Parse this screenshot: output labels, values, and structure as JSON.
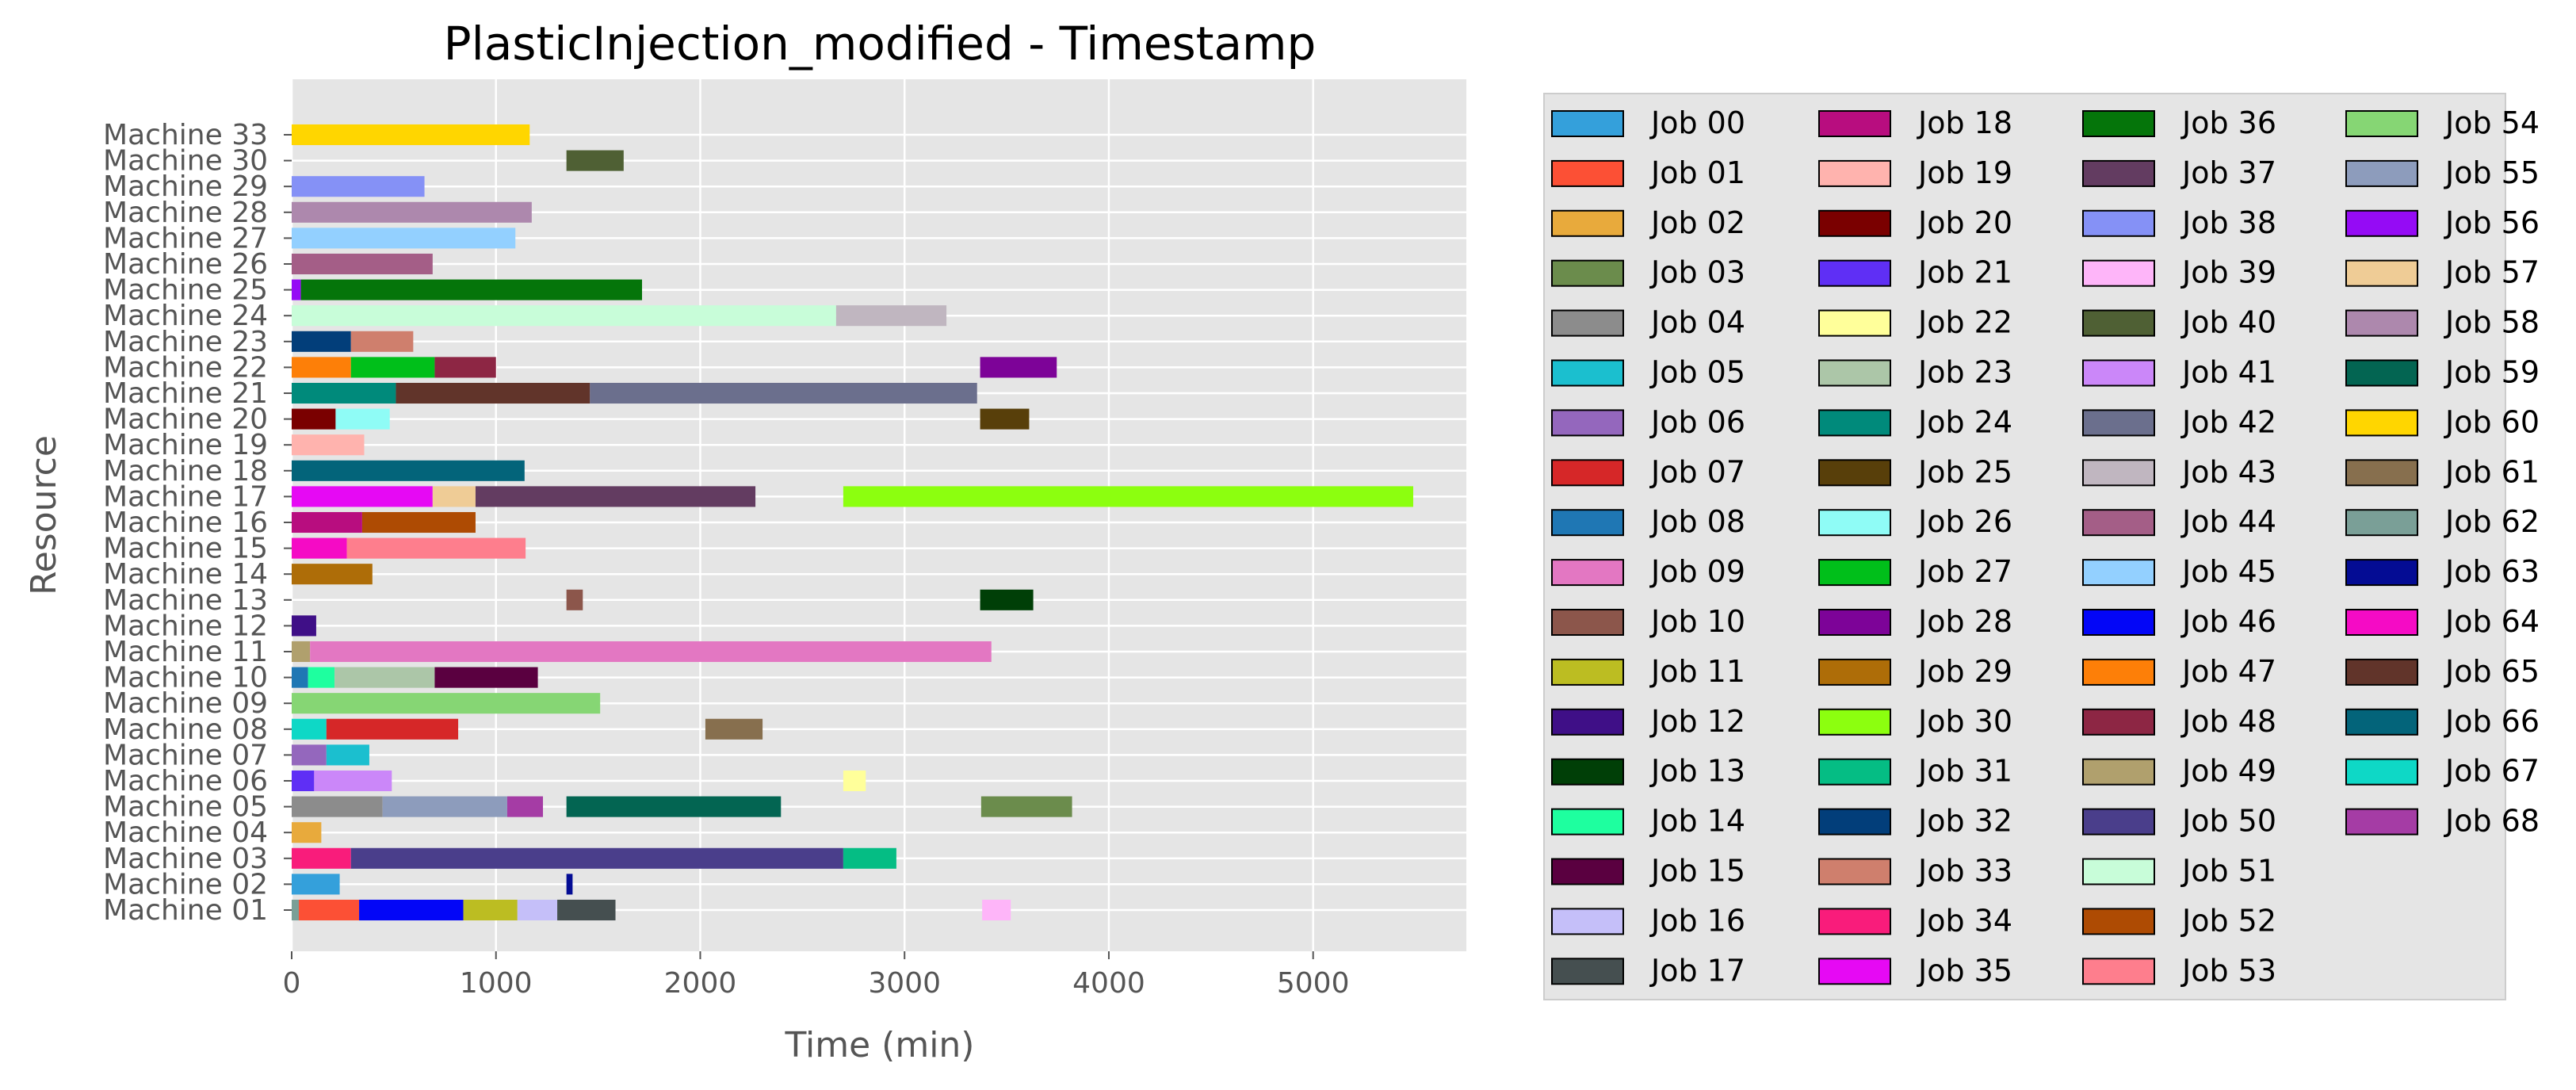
{
  "chart_data": {
    "type": "gantt",
    "title": "PlasticInjection_modified - Timestamp",
    "xlabel": "Time (min)",
    "ylabel": "Resource",
    "xlim": [
      0,
      5750
    ],
    "xticks": [
      0,
      1000,
      2000,
      3000,
      4000,
      5000
    ],
    "grid": true,
    "legend_position": "outside-right",
    "legend_columns": 4,
    "machines": [
      "Machine 01",
      "Machine 02",
      "Machine 03",
      "Machine 04",
      "Machine 05",
      "Machine 06",
      "Machine 07",
      "Machine 08",
      "Machine 09",
      "Machine 10",
      "Machine 11",
      "Machine 12",
      "Machine 13",
      "Machine 14",
      "Machine 15",
      "Machine 16",
      "Machine 17",
      "Machine 18",
      "Machine 19",
      "Machine 20",
      "Machine 21",
      "Machine 22",
      "Machine 23",
      "Machine 24",
      "Machine 25",
      "Machine 26",
      "Machine 27",
      "Machine 28",
      "Machine 29",
      "Machine 30",
      "Machine 33"
    ],
    "jobs": [
      {
        "name": "Job 00",
        "color": "#34a0db"
      },
      {
        "name": "Job 01",
        "color": "#fc5035"
      },
      {
        "name": "Job 02",
        "color": "#e8aa3c"
      },
      {
        "name": "Job 03",
        "color": "#6b8c4c"
      },
      {
        "name": "Job 04",
        "color": "#8c8c8c"
      },
      {
        "name": "Job 05",
        "color": "#1bbfcf"
      },
      {
        "name": "Job 06",
        "color": "#9467bd"
      },
      {
        "name": "Job 07",
        "color": "#d62728"
      },
      {
        "name": "Job 08",
        "color": "#1f77b4"
      },
      {
        "name": "Job 09",
        "color": "#e377c2"
      },
      {
        "name": "Job 10",
        "color": "#8c564b"
      },
      {
        "name": "Job 11",
        "color": "#bcbd22"
      },
      {
        "name": "Job 12",
        "color": "#3f0f87"
      },
      {
        "name": "Job 13",
        "color": "#003f07"
      },
      {
        "name": "Job 14",
        "color": "#1eff9f"
      },
      {
        "name": "Job 15",
        "color": "#5a0040"
      },
      {
        "name": "Job 16",
        "color": "#c5bff9"
      },
      {
        "name": "Job 17",
        "color": "#454f50"
      },
      {
        "name": "Job 18",
        "color": "#b80d7f"
      },
      {
        "name": "Job 19",
        "color": "#ffb3ae"
      },
      {
        "name": "Job 20",
        "color": "#7a0000"
      },
      {
        "name": "Job 21",
        "color": "#5f2ff5"
      },
      {
        "name": "Job 22",
        "color": "#ffff9a"
      },
      {
        "name": "Job 23",
        "color": "#acc6a8"
      },
      {
        "name": "Job 24",
        "color": "#008a7b"
      },
      {
        "name": "Job 25",
        "color": "#583f0a"
      },
      {
        "name": "Job 26",
        "color": "#8ffcf6"
      },
      {
        "name": "Job 27",
        "color": "#00bf1a"
      },
      {
        "name": "Job 28",
        "color": "#7d0398"
      },
      {
        "name": "Job 29",
        "color": "#ae6d08"
      },
      {
        "name": "Job 30",
        "color": "#8cff0f"
      },
      {
        "name": "Job 31",
        "color": "#05bd84"
      },
      {
        "name": "Job 32",
        "color": "#023e7a"
      },
      {
        "name": "Job 33",
        "color": "#cf7f6d"
      },
      {
        "name": "Job 34",
        "color": "#f91c7b"
      },
      {
        "name": "Job 35",
        "color": "#e609f4"
      },
      {
        "name": "Job 36",
        "color": "#05750a"
      },
      {
        "name": "Job 37",
        "color": "#633c61"
      },
      {
        "name": "Job 38",
        "color": "#8591f6"
      },
      {
        "name": "Job 39",
        "color": "#feb5f9"
      },
      {
        "name": "Job 40",
        "color": "#4f6034"
      },
      {
        "name": "Job 41",
        "color": "#cb87f9"
      },
      {
        "name": "Job 42",
        "color": "#6b6f8d"
      },
      {
        "name": "Job 43",
        "color": "#c0b6c0"
      },
      {
        "name": "Job 44",
        "color": "#a45e87"
      },
      {
        "name": "Job 45",
        "color": "#93d0ff"
      },
      {
        "name": "Job 46",
        "color": "#0306f7"
      },
      {
        "name": "Job 47",
        "color": "#fd7f08"
      },
      {
        "name": "Job 48",
        "color": "#8d2644"
      },
      {
        "name": "Job 49",
        "color": "#b0a06d"
      },
      {
        "name": "Job 50",
        "color": "#4a3e8b"
      },
      {
        "name": "Job 51",
        "color": "#c8fdd9"
      },
      {
        "name": "Job 52",
        "color": "#ae4b03"
      },
      {
        "name": "Job 53",
        "color": "#fe7e8d"
      },
      {
        "name": "Job 54",
        "color": "#86d674"
      },
      {
        "name": "Job 55",
        "color": "#8d9cbc"
      },
      {
        "name": "Job 56",
        "color": "#950bf5"
      },
      {
        "name": "Job 57",
        "color": "#efcc96"
      },
      {
        "name": "Job 58",
        "color": "#ad88ad"
      },
      {
        "name": "Job 59",
        "color": "#036552"
      },
      {
        "name": "Job 60",
        "color": "#ffd600"
      },
      {
        "name": "Job 61",
        "color": "#876f4e"
      },
      {
        "name": "Job 62",
        "color": "#7a9f97"
      },
      {
        "name": "Job 63",
        "color": "#040c94"
      },
      {
        "name": "Job 64",
        "color": "#f50bc5"
      },
      {
        "name": "Job 65",
        "color": "#61342a"
      },
      {
        "name": "Job 66",
        "color": "#03647a"
      },
      {
        "name": "Job 67",
        "color": "#0ed8c6"
      },
      {
        "name": "Job 68",
        "color": "#a53ca5"
      }
    ],
    "tasks": [
      {
        "machine": "Machine 33",
        "job": "Job 60",
        "start": 0,
        "end": 1165
      },
      {
        "machine": "Machine 30",
        "job": "Job 40",
        "start": 1345,
        "end": 1625
      },
      {
        "machine": "Machine 29",
        "job": "Job 38",
        "start": 0,
        "end": 650
      },
      {
        "machine": "Machine 28",
        "job": "Job 58",
        "start": 0,
        "end": 1175
      },
      {
        "machine": "Machine 27",
        "job": "Job 45",
        "start": 0,
        "end": 1095
      },
      {
        "machine": "Machine 26",
        "job": "Job 44",
        "start": 0,
        "end": 690
      },
      {
        "machine": "Machine 25",
        "job": "Job 56",
        "start": 0,
        "end": 45
      },
      {
        "machine": "Machine 25",
        "job": "Job 36",
        "start": 45,
        "end": 1715
      },
      {
        "machine": "Machine 24",
        "job": "Job 51",
        "start": 0,
        "end": 2665
      },
      {
        "machine": "Machine 24",
        "job": "Job 43",
        "start": 2665,
        "end": 3205
      },
      {
        "machine": "Machine 23",
        "job": "Job 32",
        "start": 0,
        "end": 290
      },
      {
        "machine": "Machine 23",
        "job": "Job 33",
        "start": 290,
        "end": 595
      },
      {
        "machine": "Machine 22",
        "job": "Job 47",
        "start": 0,
        "end": 290
      },
      {
        "machine": "Machine 22",
        "job": "Job 27",
        "start": 290,
        "end": 700
      },
      {
        "machine": "Machine 22",
        "job": "Job 48",
        "start": 700,
        "end": 1000
      },
      {
        "machine": "Machine 22",
        "job": "Job 28",
        "start": 3370,
        "end": 3745
      },
      {
        "machine": "Machine 21",
        "job": "Job 24",
        "start": 0,
        "end": 510
      },
      {
        "machine": "Machine 21",
        "job": "Job 65",
        "start": 510,
        "end": 1460
      },
      {
        "machine": "Machine 21",
        "job": "Job 42",
        "start": 1460,
        "end": 3355
      },
      {
        "machine": "Machine 20",
        "job": "Job 20",
        "start": 0,
        "end": 215
      },
      {
        "machine": "Machine 20",
        "job": "Job 26",
        "start": 215,
        "end": 480
      },
      {
        "machine": "Machine 20",
        "job": "Job 25",
        "start": 3370,
        "end": 3610
      },
      {
        "machine": "Machine 19",
        "job": "Job 19",
        "start": 0,
        "end": 355
      },
      {
        "machine": "Machine 18",
        "job": "Job 66",
        "start": 0,
        "end": 1140
      },
      {
        "machine": "Machine 17",
        "job": "Job 35",
        "start": 0,
        "end": 690
      },
      {
        "machine": "Machine 17",
        "job": "Job 57",
        "start": 690,
        "end": 900
      },
      {
        "machine": "Machine 17",
        "job": "Job 37",
        "start": 900,
        "end": 2270
      },
      {
        "machine": "Machine 17",
        "job": "Job 30",
        "start": 2700,
        "end": 5490
      },
      {
        "machine": "Machine 16",
        "job": "Job 18",
        "start": 0,
        "end": 345
      },
      {
        "machine": "Machine 16",
        "job": "Job 52",
        "start": 345,
        "end": 900
      },
      {
        "machine": "Machine 15",
        "job": "Job 64",
        "start": 0,
        "end": 270
      },
      {
        "machine": "Machine 15",
        "job": "Job 53",
        "start": 270,
        "end": 1145
      },
      {
        "machine": "Machine 14",
        "job": "Job 29",
        "start": 0,
        "end": 395
      },
      {
        "machine": "Machine 13",
        "job": "Job 10",
        "start": 1345,
        "end": 1425
      },
      {
        "machine": "Machine 13",
        "job": "Job 13",
        "start": 3370,
        "end": 3630
      },
      {
        "machine": "Machine 12",
        "job": "Job 12",
        "start": 0,
        "end": 120
      },
      {
        "machine": "Machine 11",
        "job": "Job 49",
        "start": 0,
        "end": 90
      },
      {
        "machine": "Machine 11",
        "job": "Job 09",
        "start": 90,
        "end": 3425
      },
      {
        "machine": "Machine 10",
        "job": "Job 08",
        "start": 0,
        "end": 80
      },
      {
        "machine": "Machine 10",
        "job": "Job 14",
        "start": 80,
        "end": 210
      },
      {
        "machine": "Machine 10",
        "job": "Job 23",
        "start": 210,
        "end": 700
      },
      {
        "machine": "Machine 10",
        "job": "Job 15",
        "start": 700,
        "end": 1205
      },
      {
        "machine": "Machine 09",
        "job": "Job 54",
        "start": 0,
        "end": 1510
      },
      {
        "machine": "Machine 08",
        "job": "Job 67",
        "start": 0,
        "end": 170
      },
      {
        "machine": "Machine 08",
        "job": "Job 07",
        "start": 170,
        "end": 815
      },
      {
        "machine": "Machine 08",
        "job": "Job 61",
        "start": 2025,
        "end": 2305
      },
      {
        "machine": "Machine 07",
        "job": "Job 06",
        "start": 0,
        "end": 170
      },
      {
        "machine": "Machine 07",
        "job": "Job 05",
        "start": 170,
        "end": 380
      },
      {
        "machine": "Machine 06",
        "job": "Job 21",
        "start": 0,
        "end": 110
      },
      {
        "machine": "Machine 06",
        "job": "Job 41",
        "start": 110,
        "end": 490
      },
      {
        "machine": "Machine 06",
        "job": "Job 22",
        "start": 2700,
        "end": 2810
      },
      {
        "machine": "Machine 05",
        "job": "Job 04",
        "start": 0,
        "end": 445
      },
      {
        "machine": "Machine 05",
        "job": "Job 55",
        "start": 445,
        "end": 1055
      },
      {
        "machine": "Machine 05",
        "job": "Job 68",
        "start": 1055,
        "end": 1230
      },
      {
        "machine": "Machine 05",
        "job": "Job 59",
        "start": 1345,
        "end": 2395
      },
      {
        "machine": "Machine 05",
        "job": "Job 03",
        "start": 3375,
        "end": 3820
      },
      {
        "machine": "Machine 04",
        "job": "Job 02",
        "start": 0,
        "end": 145
      },
      {
        "machine": "Machine 03",
        "job": "Job 34",
        "start": 0,
        "end": 290
      },
      {
        "machine": "Machine 03",
        "job": "Job 50",
        "start": 290,
        "end": 2700
      },
      {
        "machine": "Machine 03",
        "job": "Job 31",
        "start": 2700,
        "end": 2960
      },
      {
        "machine": "Machine 02",
        "job": "Job 00",
        "start": 0,
        "end": 235
      },
      {
        "machine": "Machine 02",
        "job": "Job 63",
        "start": 1345,
        "end": 1375
      },
      {
        "machine": "Machine 01",
        "job": "Job 62",
        "start": 0,
        "end": 35
      },
      {
        "machine": "Machine 01",
        "job": "Job 01",
        "start": 35,
        "end": 330
      },
      {
        "machine": "Machine 01",
        "job": "Job 46",
        "start": 330,
        "end": 840
      },
      {
        "machine": "Machine 01",
        "job": "Job 11",
        "start": 840,
        "end": 1105
      },
      {
        "machine": "Machine 01",
        "job": "Job 16",
        "start": 1105,
        "end": 1300
      },
      {
        "machine": "Machine 01",
        "job": "Job 17",
        "start": 1300,
        "end": 1585
      },
      {
        "machine": "Machine 01",
        "job": "Job 39",
        "start": 3380,
        "end": 3520
      }
    ]
  }
}
